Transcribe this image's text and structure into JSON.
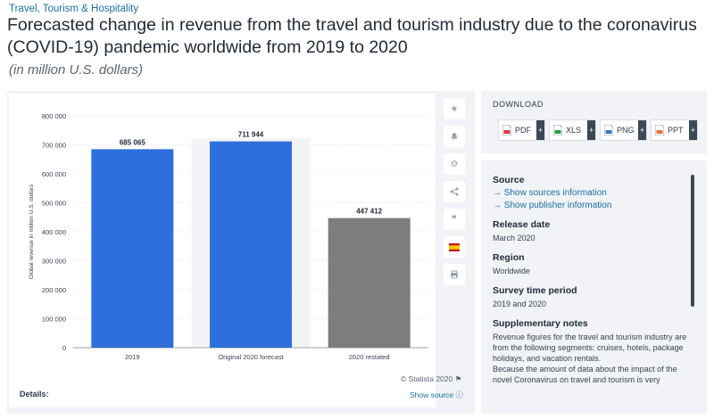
{
  "header": {
    "category": "Travel, Tourism & Hospitality",
    "title": "Forecasted change in revenue from the travel and tourism industry due to the coronavirus (COVID-19) pandemic worldwide from 2019 to 2020",
    "subtitle": "(in million U.S. dollars)"
  },
  "chart_data": {
    "type": "bar",
    "categories": [
      "2019",
      "Original 2020 forecast",
      "2020 restated"
    ],
    "values": [
      685065,
      711944,
      447412
    ],
    "value_labels": [
      "685 065",
      "711 944",
      "447 412"
    ],
    "bar_colors": [
      "#2f6fdb",
      "#2f6fdb",
      "#7d7d7d"
    ],
    "highlighted_category_background": "#f3f4f6",
    "ylabel": "Global revenue in million U.S. dollars",
    "ylim": [
      0,
      800000
    ],
    "yticks": [
      0,
      100000,
      200000,
      300000,
      400000,
      500000,
      600000,
      700000,
      800000
    ],
    "ytick_labels": [
      "0",
      "100 000",
      "200 000",
      "300 000",
      "400 000",
      "500 000",
      "600 000",
      "700 000",
      "800 000"
    ],
    "grid": true
  },
  "chart_footer": {
    "credit": "© Statista 2020",
    "details_label": "Details:",
    "show_source": "Show source"
  },
  "tools": [
    {
      "name": "star-icon",
      "glyph": "★"
    },
    {
      "name": "bell-icon",
      "glyph": "🔔"
    },
    {
      "name": "gear-icon",
      "glyph": "⚙"
    },
    {
      "name": "share-icon",
      "glyph": "⋖"
    },
    {
      "name": "quote-icon",
      "glyph": "❞"
    },
    {
      "name": "flag-es-icon",
      "glyph": ""
    },
    {
      "name": "print-icon",
      "glyph": "⎙"
    }
  ],
  "download": {
    "title": "DOWNLOAD",
    "buttons": [
      {
        "label": "PDF",
        "color": "#d9363e"
      },
      {
        "label": "XLS",
        "color": "#2e9e49"
      },
      {
        "label": "PNG",
        "color": "#3b78c2"
      },
      {
        "label": "PPT",
        "color": "#e07a2e"
      }
    ]
  },
  "info": {
    "source_heading": "Source",
    "show_sources": "→ Show sources information",
    "show_publisher": "→ Show publisher information",
    "release_heading": "Release date",
    "release_value": "March 2020",
    "region_heading": "Region",
    "region_value": "Worldwide",
    "survey_heading": "Survey time period",
    "survey_value": "2019 and 2020",
    "notes_heading": "Supplementary notes",
    "notes_p1": "Revenue figures for the travel and tourism industry are from the following segments: cruises, hotels, package holidays, and vacation rentals.",
    "notes_p2": "Because the amount of data about the impact of the novel Coronavirus on travel and tourism is very"
  }
}
